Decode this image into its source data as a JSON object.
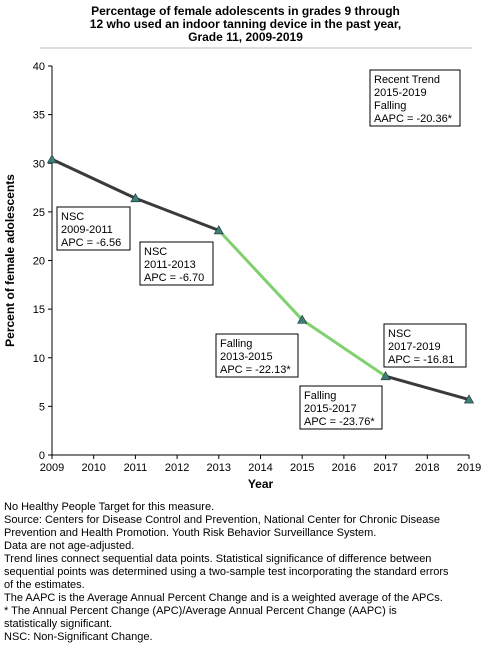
{
  "title_lines": [
    "Percentage of female adolescents in grades 9 through",
    "12 who used an indoor tanning device in the past year,",
    "Grade 11,  2009-2019"
  ],
  "colors": {
    "trend_nsc": "#3a3a3a",
    "trend_falling": "#80d070",
    "marker": "#3f7f78",
    "axis": "#000000",
    "grid": "#bbbbbb"
  },
  "chart_data": {
    "type": "line",
    "xlabel": "Year",
    "ylabel": "Percent of female adolescents",
    "xlim": [
      2009,
      2019
    ],
    "ylim": [
      0,
      40
    ],
    "x_ticks": [
      "2009",
      "2010",
      "2011",
      "2012",
      "2013",
      "2014",
      "2015",
      "2016",
      "2017",
      "2018",
      "2019"
    ],
    "y_ticks": [
      "0",
      "5",
      "10",
      "15",
      "20",
      "25",
      "30",
      "35",
      "40"
    ],
    "points": [
      {
        "x": 2009,
        "y": 30.4
      },
      {
        "x": 2011,
        "y": 26.4
      },
      {
        "x": 2013,
        "y": 23.1
      },
      {
        "x": 2015,
        "y": 13.9
      },
      {
        "x": 2017,
        "y": 8.1
      },
      {
        "x": 2019,
        "y": 5.7
      }
    ],
    "segments": [
      {
        "from": 2009,
        "to": 2011,
        "trend": "nsc"
      },
      {
        "from": 2011,
        "to": 2013,
        "trend": "nsc"
      },
      {
        "from": 2013,
        "to": 2015,
        "trend": "falling"
      },
      {
        "from": 2015,
        "to": 2017,
        "trend": "falling"
      },
      {
        "from": 2017,
        "to": 2019,
        "trend": "nsc"
      }
    ],
    "annotations": [
      {
        "lines": [
          "NSC",
          "2009-2011",
          "APC = -6.56"
        ]
      },
      {
        "lines": [
          "NSC",
          "2011-2013",
          "APC = -6.70"
        ]
      },
      {
        "lines": [
          "Falling",
          "2013-2015",
          "APC = -22.13*"
        ]
      },
      {
        "lines": [
          "Falling",
          "2015-2017",
          "APC = -23.76*"
        ]
      },
      {
        "lines": [
          "NSC",
          "2017-2019",
          "APC = -16.81"
        ]
      },
      {
        "lines": [
          "Recent Trend",
          "2015-2019",
          "Falling",
          "AAPC = -20.36*"
        ]
      }
    ],
    "grid": false
  },
  "footnotes": [
    "No Healthy People Target for this measure.",
    "Source: Centers for Disease Control and Prevention, National Center for Chronic Disease",
    "Prevention and Health Promotion. Youth Risk Behavior Surveillance System.",
    "Data are not age-adjusted.",
    "Trend lines connect sequential data points. Statistical significance of difference between",
    "sequential points was determined using a two-sample test incorporating the standard errors",
    "of the estimates.",
    "The AAPC is the Average Annual Percent Change and is a weighted average of the APCs.",
    "* The Annual Percent Change (APC)/Average Annual Percent Change (AAPC) is",
    "statistically significant.",
    "NSC: Non-Significant Change."
  ]
}
